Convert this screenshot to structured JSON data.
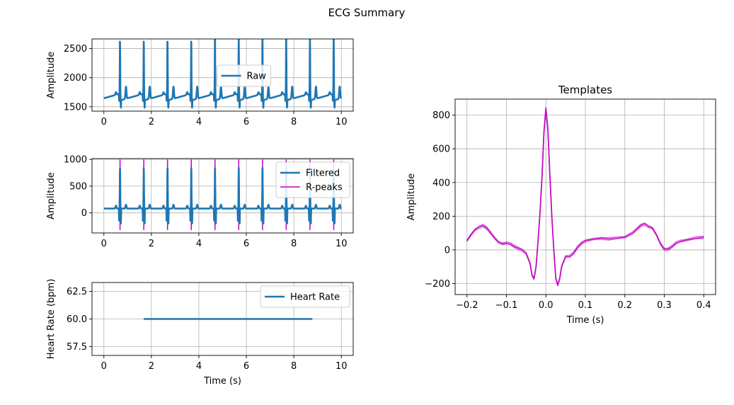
{
  "figure_title": "ECG Summary",
  "colors": {
    "series": "#1f77b4",
    "rpeak": "#bf00bf",
    "grid": "#b0b0b0"
  },
  "chart_data": [
    {
      "id": "raw",
      "type": "line",
      "title": "",
      "xlabel": "",
      "ylabel": "Amplitude",
      "xlim": [
        -0.5,
        10.5
      ],
      "ylim": [
        1425,
        2665
      ],
      "xticks": [
        0,
        2,
        4,
        6,
        8,
        10
      ],
      "yticks": [
        1500,
        2000,
        2500
      ],
      "grid": true,
      "legend": {
        "placement": "upper-center",
        "entries": [
          {
            "label": "Raw",
            "kind": "line",
            "color": "#1f77b4"
          }
        ]
      },
      "series": [
        {
          "name": "Raw",
          "kind": "ecg-beats",
          "beat_times": [
            0.68,
            1.68,
            2.68,
            3.68,
            4.68,
            5.68,
            6.68,
            7.68,
            8.68,
            9.68
          ],
          "baseline_start": 1610,
          "baseline_end": 1725,
          "peak": 2610,
          "q_trough": 1490,
          "s_trough": 1480,
          "t_wave": 1840,
          "p_wave": 1660,
          "x_range": [
            0,
            10
          ]
        }
      ]
    },
    {
      "id": "filtered",
      "type": "line",
      "title": "",
      "xlabel": "",
      "ylabel": "Amplitude",
      "xlim": [
        -0.5,
        10.5
      ],
      "ylim": [
        -375,
        1015
      ],
      "xticks": [
        0,
        2,
        4,
        6,
        8,
        10
      ],
      "yticks": [
        0,
        500,
        1000
      ],
      "grid": true,
      "legend": {
        "placement": "upper-right",
        "entries": [
          {
            "label": "Filtered",
            "kind": "line",
            "color": "#1f77b4"
          },
          {
            "label": "R-peaks",
            "kind": "vline",
            "color": "#bf00bf"
          }
        ]
      },
      "series": [
        {
          "name": "Filtered",
          "kind": "ecg-beats",
          "beat_times": [
            0.68,
            1.68,
            2.68,
            3.68,
            4.68,
            5.68,
            6.68,
            7.68,
            8.68,
            9.68
          ],
          "baseline_start": 80,
          "baseline_end": 80,
          "peak": 840,
          "q_trough": -150,
          "s_trough": -200,
          "t_wave": 160,
          "p_wave": 140,
          "x_range": [
            0,
            10
          ]
        }
      ],
      "r_peaks": {
        "times": [
          0.68,
          1.68,
          2.68,
          3.68,
          4.68,
          5.68,
          6.68,
          7.68,
          8.68,
          9.68
        ],
        "ymin": -320,
        "ymax": 1000
      }
    },
    {
      "id": "heart_rate",
      "type": "line",
      "title": "",
      "xlabel": "Time (s)",
      "ylabel": "Heart Rate (bpm)",
      "xlim": [
        -0.5,
        10.5
      ],
      "ylim": [
        56.7,
        63.3
      ],
      "xticks": [
        0,
        2,
        4,
        6,
        8,
        10
      ],
      "yticks": [
        57.5,
        60.0,
        62.5
      ],
      "ytick_labels": [
        "57.5",
        "60.0",
        "62.5"
      ],
      "grid": true,
      "legend": {
        "placement": "upper-right",
        "entries": [
          {
            "label": "Heart Rate",
            "kind": "line",
            "color": "#1f77b4"
          }
        ]
      },
      "series": [
        {
          "name": "Heart Rate",
          "kind": "xy",
          "x": [
            1.68,
            8.78
          ],
          "y": [
            60.0,
            60.0
          ]
        }
      ]
    },
    {
      "id": "templates",
      "type": "line",
      "title": "Templates",
      "xlabel": "Time (s)",
      "ylabel": "Amplitude",
      "xlim": [
        -0.23,
        0.43
      ],
      "ylim": [
        -265,
        895
      ],
      "xticks": [
        -0.2,
        -0.1,
        0.0,
        0.1,
        0.2,
        0.3,
        0.4
      ],
      "xtick_labels": [
        "−0.2",
        "−0.1",
        "0.0",
        "0.1",
        "0.2",
        "0.3",
        "0.4"
      ],
      "yticks": [
        -200,
        0,
        200,
        400,
        600,
        800
      ],
      "ytick_labels": [
        "−200",
        "0",
        "200",
        "400",
        "600",
        "800"
      ],
      "grid": true,
      "template_points": [
        [
          -0.2,
          55
        ],
        [
          -0.19,
          90
        ],
        [
          -0.18,
          120
        ],
        [
          -0.17,
          135
        ],
        [
          -0.16,
          145
        ],
        [
          -0.15,
          130
        ],
        [
          -0.14,
          100
        ],
        [
          -0.13,
          70
        ],
        [
          -0.12,
          45
        ],
        [
          -0.11,
          35
        ],
        [
          -0.1,
          40
        ],
        [
          -0.09,
          35
        ],
        [
          -0.08,
          20
        ],
        [
          -0.07,
          10
        ],
        [
          -0.06,
          0
        ],
        [
          -0.05,
          -20
        ],
        [
          -0.04,
          -80
        ],
        [
          -0.035,
          -150
        ],
        [
          -0.03,
          -170
        ],
        [
          -0.025,
          -100
        ],
        [
          -0.02,
          50
        ],
        [
          -0.015,
          220
        ],
        [
          -0.01,
          430
        ],
        [
          -0.005,
          700
        ],
        [
          0.0,
          840
        ],
        [
          0.005,
          720
        ],
        [
          0.01,
          450
        ],
        [
          0.015,
          200
        ],
        [
          0.02,
          0
        ],
        [
          0.025,
          -170
        ],
        [
          0.03,
          -210
        ],
        [
          0.035,
          -170
        ],
        [
          0.04,
          -100
        ],
        [
          0.05,
          -40
        ],
        [
          0.06,
          -40
        ],
        [
          0.07,
          -20
        ],
        [
          0.08,
          15
        ],
        [
          0.09,
          40
        ],
        [
          0.1,
          55
        ],
        [
          0.12,
          65
        ],
        [
          0.14,
          70
        ],
        [
          0.16,
          65
        ],
        [
          0.18,
          70
        ],
        [
          0.2,
          75
        ],
        [
          0.22,
          100
        ],
        [
          0.24,
          145
        ],
        [
          0.25,
          155
        ],
        [
          0.26,
          140
        ],
        [
          0.27,
          130
        ],
        [
          0.28,
          90
        ],
        [
          0.29,
          40
        ],
        [
          0.3,
          5
        ],
        [
          0.31,
          5
        ],
        [
          0.32,
          20
        ],
        [
          0.33,
          40
        ],
        [
          0.34,
          50
        ],
        [
          0.36,
          60
        ],
        [
          0.38,
          70
        ],
        [
          0.4,
          75
        ]
      ],
      "series": [
        {
          "name": "",
          "color": "#bf00bf",
          "offset": 0
        },
        {
          "name": "",
          "color": "#bf00bf",
          "offset": 8
        },
        {
          "name": "",
          "color": "#bf00bf",
          "offset": -8
        },
        {
          "name": "",
          "color": "#bf00bf",
          "offset": 4
        }
      ]
    }
  ]
}
